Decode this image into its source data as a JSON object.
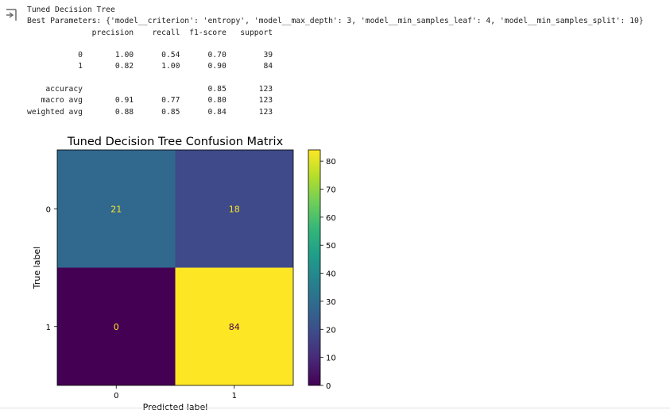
{
  "output": {
    "icon": "output-redirect-icon",
    "lines": [
      "Tuned Decision Tree",
      "Best Parameters: {'model__criterion': 'entropy', 'model__max_depth': 3, 'model__min_samples_leaf': 4, 'model__min_samples_split': 10}",
      "              precision    recall  f1-score   support",
      "",
      "           0       1.00      0.54      0.70        39",
      "           1       0.82      1.00      0.90        84",
      "",
      "    accuracy                           0.85       123",
      "   macro avg       0.91      0.77      0.80       123",
      "weighted avg       0.88      0.85      0.84       123"
    ]
  },
  "chart_data": {
    "type": "heatmap",
    "title": "Tuned Decision Tree Confusion Matrix",
    "xlabel": "Predicted label",
    "ylabel": "True label",
    "x_ticks": [
      "0",
      "1"
    ],
    "y_ticks": [
      "0",
      "1"
    ],
    "values": [
      [
        21,
        18
      ],
      [
        0,
        84
      ]
    ],
    "colormap": "viridis",
    "colorbar": {
      "min": 0,
      "max": 84,
      "ticks": [
        0,
        10,
        20,
        30,
        40,
        50,
        60,
        70,
        80
      ]
    },
    "cell_colors": [
      [
        "#31688e",
        "#3e4a89"
      ],
      [
        "#440154",
        "#fde725"
      ]
    ],
    "text_colors": [
      [
        "#fde725",
        "#fde725"
      ],
      [
        "#fde725",
        "#440154"
      ]
    ],
    "grid": false
  }
}
